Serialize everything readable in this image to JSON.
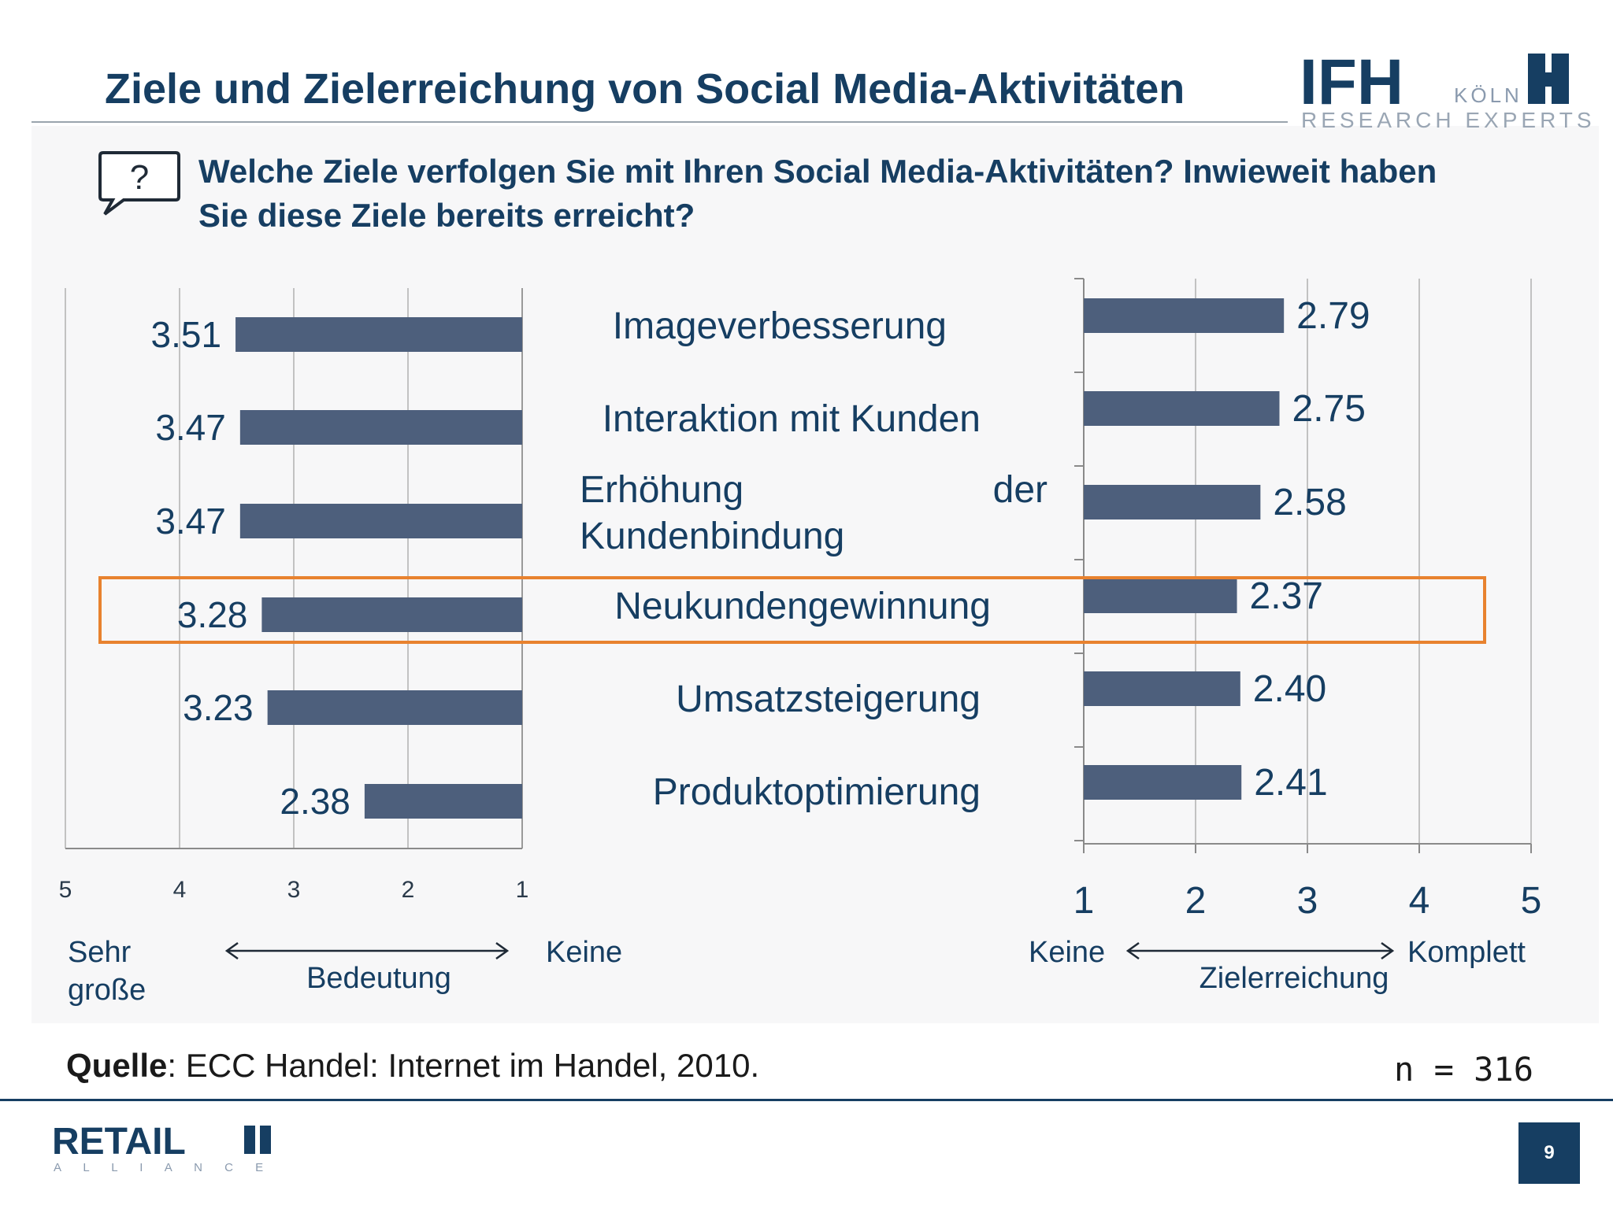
{
  "slide": {
    "title": "Ziele und Zielerreichung von Social Media-Aktivitäten",
    "question_mark": "?",
    "question": "Welche Ziele verfolgen Sie mit Ihren Social Media-Aktivitäten? Inwieweit haben Sie diese Ziele bereits erreicht?",
    "source_label": "Quelle",
    "source_text": ": ECC Handel: Internet im Handel, 2010.",
    "sample_size": "n = 316",
    "page_number": "9"
  },
  "logo": {
    "ifh_text": "IFH",
    "koeln_text": "KÖLN",
    "tagline": "RESEARCH EXPERTS",
    "color": "#163e62"
  },
  "footer_logo": {
    "main_text": "RETAIL",
    "sub_text": "A L L I A N C E",
    "color": "#163e62"
  },
  "colors": {
    "bar": "#4d5f7c",
    "highlight": "#e8822f",
    "text_dark": "#163e62",
    "axis": "#8a8a8a"
  },
  "chart_data": [
    {
      "type": "bar",
      "orientation": "horizontal",
      "direction": "reversed",
      "categories": [
        "Imageverbesserung",
        "Interaktion mit Kunden",
        "Erhöhung der Kundenbindung",
        "Neukundengewinnung",
        "Umsatzsteigerung",
        "Produktoptimierung"
      ],
      "values": [
        3.51,
        3.47,
        3.47,
        3.28,
        3.23,
        2.38
      ],
      "data_labels": [
        "3.51",
        "3.47",
        "3.47",
        "3.28",
        "3.23",
        "2.38"
      ],
      "xlim": [
        1,
        5
      ],
      "xticks": [
        "5",
        "4",
        "3",
        "2",
        "1"
      ],
      "xlabel": "Bedeutung",
      "left_end_label": "Sehr große",
      "right_end_label": "Keine",
      "grid": true
    },
    {
      "type": "bar",
      "orientation": "horizontal",
      "categories": [
        "Imageverbesserung",
        "Interaktion mit Kunden",
        "Erhöhung der Kundenbindung",
        "Neukundengewinnung",
        "Umsatzsteigerung",
        "Produktoptimierung"
      ],
      "values": [
        2.79,
        2.75,
        2.58,
        2.37,
        2.4,
        2.41
      ],
      "data_labels": [
        "2.79",
        "2.75",
        "2.58",
        "2.37",
        "2.40",
        "2.41"
      ],
      "xlim": [
        1,
        5
      ],
      "xticks": [
        "1",
        "2",
        "3",
        "4",
        "5"
      ],
      "xlabel": "Zielerreichung",
      "left_end_label": "Keine",
      "right_end_label": "Komplett",
      "grid": true
    }
  ],
  "highlighted_category": "Neukundengewinnung"
}
